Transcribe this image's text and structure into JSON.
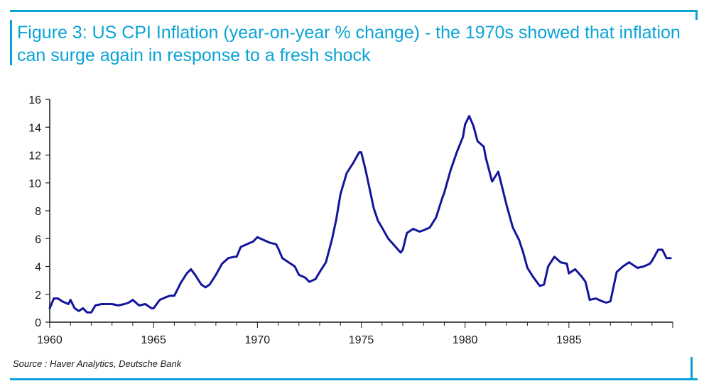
{
  "figure": {
    "title": "Figure 3: US CPI Inflation (year-on-year % change) - the 1970s showed that inflation can surge again in response to a fresh shock",
    "source": "Source : Haver Analytics, Deutsche Bank",
    "accent_color": "#0aa3d6",
    "line_color": "#14159a"
  },
  "chart_data": {
    "type": "line",
    "title": "Figure 3: US CPI Inflation (year-on-year % change) - the 1970s showed that inflation can surge again in response to a fresh shock",
    "xlabel": "",
    "ylabel": "",
    "xlim": [
      1960,
      1990
    ],
    "ylim": [
      0,
      16
    ],
    "x_ticks": [
      1960,
      1965,
      1970,
      1975,
      1980,
      1985
    ],
    "y_ticks": [
      0,
      2,
      4,
      6,
      8,
      10,
      12,
      14,
      16
    ],
    "grid": false,
    "series": [
      {
        "name": "US CPI Inflation (yoy %)",
        "x": [
          1960.0,
          1960.2,
          1960.4,
          1960.6,
          1960.9,
          1961.0,
          1961.2,
          1961.4,
          1961.6,
          1961.8,
          1962.0,
          1962.2,
          1962.5,
          1962.8,
          1963.0,
          1963.3,
          1963.6,
          1963.8,
          1964.0,
          1964.3,
          1964.6,
          1964.9,
          1965.0,
          1965.3,
          1965.6,
          1965.8,
          1966.0,
          1966.3,
          1966.6,
          1966.8,
          1967.0,
          1967.3,
          1967.5,
          1967.7,
          1968.0,
          1968.3,
          1968.6,
          1968.9,
          1969.0,
          1969.2,
          1969.5,
          1969.8,
          1970.0,
          1970.3,
          1970.6,
          1970.9,
          1971.0,
          1971.2,
          1971.5,
          1971.8,
          1972.0,
          1972.3,
          1972.5,
          1972.8,
          1973.0,
          1973.3,
          1973.6,
          1973.8,
          1974.0,
          1974.3,
          1974.6,
          1974.9,
          1975.0,
          1975.2,
          1975.4,
          1975.6,
          1975.8,
          1976.0,
          1976.3,
          1976.6,
          1976.9,
          1977.0,
          1977.2,
          1977.5,
          1977.8,
          1978.0,
          1978.3,
          1978.6,
          1978.9,
          1979.0,
          1979.3,
          1979.6,
          1979.9,
          1980.0,
          1980.2,
          1980.4,
          1980.6,
          1980.9,
          1981.0,
          1981.3,
          1981.6,
          1981.8,
          1982.0,
          1982.3,
          1982.6,
          1982.8,
          1983.0,
          1983.3,
          1983.6,
          1983.8,
          1984.0,
          1984.3,
          1984.6,
          1984.9,
          1985.0,
          1985.3,
          1985.6,
          1985.8,
          1986.0,
          1986.3,
          1986.6,
          1986.8,
          1987.0,
          1987.3,
          1987.6,
          1987.9,
          1988.0,
          1988.3,
          1988.6,
          1988.9,
          1989.0,
          1989.3,
          1989.5,
          1989.7,
          1989.9
        ],
        "values": [
          1.0,
          1.7,
          1.7,
          1.5,
          1.3,
          1.6,
          1.0,
          0.8,
          1.0,
          0.7,
          0.7,
          1.2,
          1.3,
          1.3,
          1.3,
          1.2,
          1.3,
          1.4,
          1.6,
          1.2,
          1.3,
          1.0,
          1.0,
          1.6,
          1.8,
          1.9,
          1.9,
          2.8,
          3.5,
          3.8,
          3.4,
          2.7,
          2.5,
          2.7,
          3.4,
          4.2,
          4.6,
          4.7,
          4.7,
          5.4,
          5.6,
          5.8,
          6.1,
          5.9,
          5.7,
          5.6,
          5.3,
          4.6,
          4.3,
          4.0,
          3.4,
          3.2,
          2.9,
          3.1,
          3.6,
          4.3,
          6.0,
          7.4,
          9.2,
          10.7,
          11.4,
          12.2,
          12.2,
          11.0,
          9.6,
          8.2,
          7.3,
          6.8,
          6.0,
          5.5,
          5.0,
          5.2,
          6.4,
          6.7,
          6.5,
          6.6,
          6.8,
          7.5,
          8.9,
          9.3,
          10.9,
          12.2,
          13.3,
          14.2,
          14.8,
          14.1,
          13.0,
          12.6,
          11.8,
          10.1,
          10.8,
          9.6,
          8.4,
          6.8,
          5.9,
          5.0,
          3.9,
          3.2,
          2.6,
          2.7,
          4.0,
          4.7,
          4.3,
          4.2,
          3.5,
          3.8,
          3.3,
          2.9,
          1.6,
          1.7,
          1.5,
          1.4,
          1.5,
          3.6,
          4.0,
          4.3,
          4.2,
          3.9,
          4.0,
          4.2,
          4.4,
          5.2,
          5.2,
          4.6,
          4.6
        ]
      }
    ]
  }
}
